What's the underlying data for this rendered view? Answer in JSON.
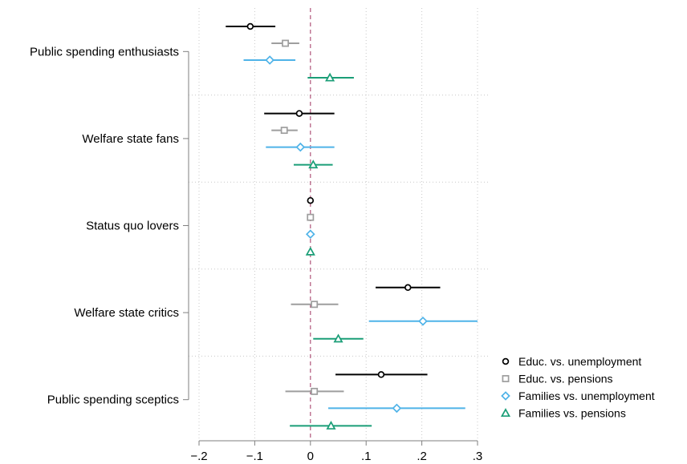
{
  "chart_data": {
    "type": "scatter",
    "subtype": "coefficient-plot-horizontal",
    "xlim": [
      -0.2,
      0.3
    ],
    "x_ticks": [
      -0.2,
      -0.1,
      0,
      0.1,
      0.2,
      0.3
    ],
    "x_tick_labels": [
      "−.2",
      "−.1",
      "0",
      ".1",
      ".2",
      ".3"
    ],
    "reference_line_x": 0,
    "grid": true,
    "legend_position": "right-bottom",
    "categories": [
      "Public spending enthusiasts",
      "Welfare state fans",
      "Status quo lovers",
      "Welfare state critics",
      "Public spending sceptics"
    ],
    "series": [
      {
        "name": "Educ. vs. unemployment",
        "color": "#000000",
        "marker": "circle",
        "estimates": [
          -0.108,
          -0.02,
          0.0,
          0.175,
          0.127
        ],
        "ci_low": [
          -0.152,
          -0.083,
          0.0,
          0.117,
          0.045
        ],
        "ci_high": [
          -0.063,
          0.043,
          0.0,
          0.233,
          0.21
        ]
      },
      {
        "name": "Educ. vs. pensions",
        "color": "#9e9e9e",
        "marker": "square",
        "estimates": [
          -0.045,
          -0.047,
          0.0,
          0.007,
          0.007
        ],
        "ci_low": [
          -0.07,
          -0.07,
          0.0,
          -0.035,
          -0.045
        ],
        "ci_high": [
          -0.02,
          -0.023,
          0.0,
          0.05,
          0.06
        ]
      },
      {
        "name": "Families vs. unemployment",
        "color": "#4fb3e8",
        "marker": "diamond",
        "estimates": [
          -0.073,
          -0.018,
          0.0,
          0.202,
          0.155
        ],
        "ci_low": [
          -0.12,
          -0.08,
          0.0,
          0.105,
          0.032
        ],
        "ci_high": [
          -0.027,
          0.043,
          0.0,
          0.3,
          0.278
        ]
      },
      {
        "name": "Families vs. pensions",
        "color": "#1a9e77",
        "marker": "triangle",
        "estimates": [
          0.035,
          0.005,
          0.0,
          0.05,
          0.037
        ],
        "ci_low": [
          -0.005,
          -0.03,
          0.0,
          0.005,
          -0.037
        ],
        "ci_high": [
          0.078,
          0.04,
          0.0,
          0.095,
          0.11
        ]
      }
    ]
  }
}
